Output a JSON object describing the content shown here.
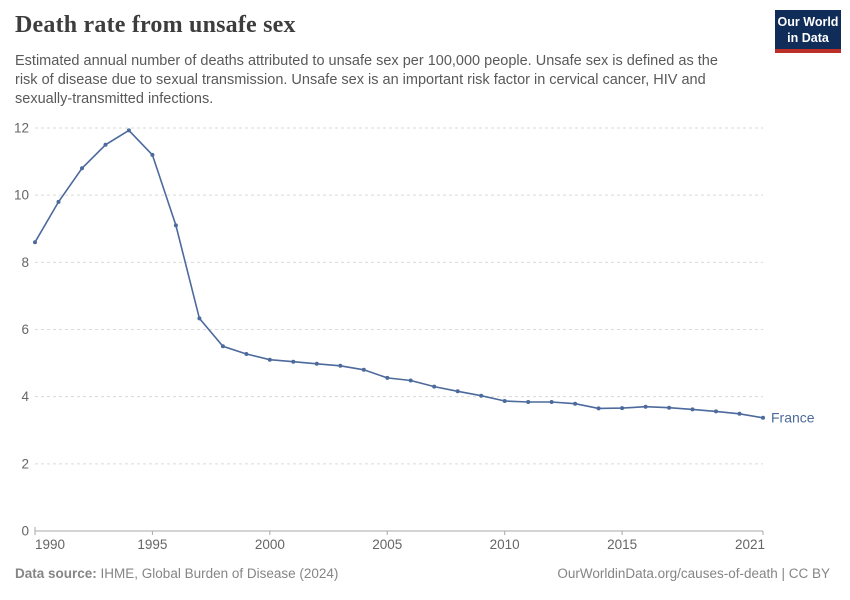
{
  "header": {
    "title": "Death rate from unsafe sex",
    "subtitle_lines": [
      "Estimated annual number of deaths attributed to unsafe sex per 100,000 people. Unsafe sex is defined as the",
      "risk of disease due to sexual transmission. Unsafe sex is an important risk factor in cervical cancer, HIV and",
      "sexually-transmitted infections."
    ],
    "logo": {
      "line1": "Our World",
      "line2": "in Data",
      "bg_color": "#102d59",
      "bar_color": "#bc2f28"
    }
  },
  "chart_data": {
    "type": "line",
    "title": "Death rate from unsafe sex",
    "xlabel": "",
    "ylabel": "",
    "xlim": [
      1990,
      2021
    ],
    "ylim": [
      0,
      12
    ],
    "xticks": [
      1990,
      1995,
      2000,
      2005,
      2010,
      2015,
      2021
    ],
    "yticks": [
      0,
      2,
      4,
      6,
      8,
      10,
      12
    ],
    "grid": "horizontal-dashed",
    "legend_position": "end-of-line-label",
    "x": [
      1990,
      1991,
      1992,
      1993,
      1994,
      1995,
      1996,
      1997,
      1998,
      1999,
      2000,
      2001,
      2002,
      2003,
      2004,
      2005,
      2006,
      2007,
      2008,
      2009,
      2010,
      2011,
      2012,
      2013,
      2014,
      2015,
      2016,
      2017,
      2018,
      2019,
      2020,
      2021
    ],
    "series": [
      {
        "name": "France",
        "color": "#4c6a9c",
        "values": [
          8.6,
          9.8,
          10.8,
          11.5,
          11.93,
          11.2,
          9.1,
          6.33,
          5.5,
          5.27,
          5.1,
          5.04,
          4.98,
          4.92,
          4.8,
          4.56,
          4.48,
          4.3,
          4.16,
          4.03,
          3.87,
          3.84,
          3.84,
          3.79,
          3.65,
          3.66,
          3.7,
          3.67,
          3.62,
          3.56,
          3.49,
          3.37
        ]
      }
    ],
    "colors": {
      "grid": "#dadada",
      "axis": "#a8a8a8",
      "tick_text": "#666666"
    }
  },
  "footer": {
    "datasource_label": "Data source:",
    "datasource_value": "IHME, Global Burden of Disease (2024)",
    "credit": "OurWorldinData.org/causes-of-death | CC BY"
  }
}
